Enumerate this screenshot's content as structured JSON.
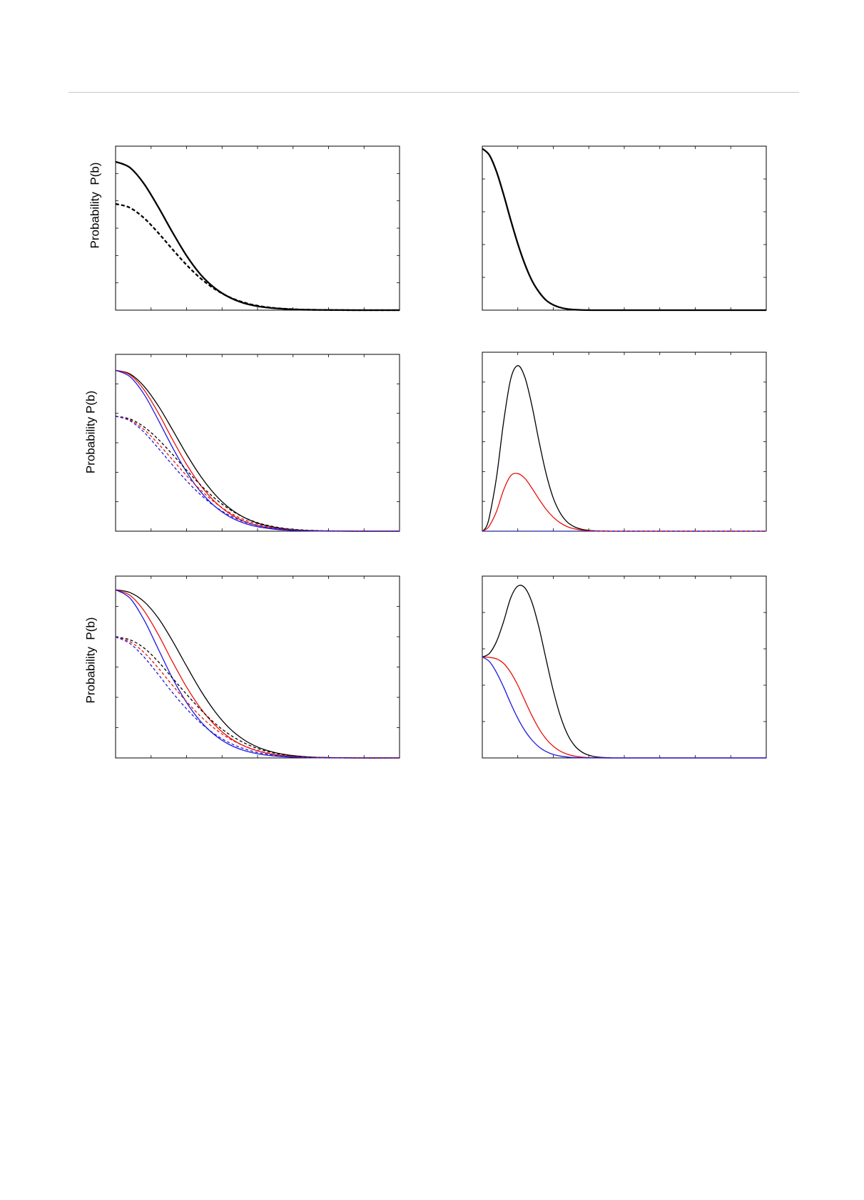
{
  "figure": {
    "colors": {
      "black": "#000000",
      "red": "#e8100a",
      "blue": "#1a1ae0",
      "rule": "#c8c8c8"
    },
    "panels": [
      {
        "id": "top-left",
        "ylabel": "Probability  P(b)"
      },
      {
        "id": "top-right",
        "ylabel": ""
      },
      {
        "id": "middle-left",
        "ylabel": "Probability P(b)"
      },
      {
        "id": "middle-right",
        "ylabel": ""
      },
      {
        "id": "bottom-left",
        "ylabel": "Probability  P(b)"
      },
      {
        "id": "bottom-right",
        "ylabel": ""
      }
    ]
  },
  "chart_data": [
    {
      "type": "line",
      "panel": "top-left",
      "title": "",
      "xlabel": "",
      "ylabel": "Probability  P(b)",
      "xlim": [
        0,
        8
      ],
      "ylim": [
        0,
        1
      ],
      "xticks": 8,
      "yticks": 6,
      "grid": false,
      "series": [
        {
          "color": "black",
          "dash": "solid",
          "width": "bold",
          "x": [
            0,
            0.4,
            0.8,
            1.2,
            1.6,
            2.0,
            2.4,
            2.8,
            3.2,
            3.6,
            4.0,
            4.4,
            4.8,
            5.2,
            5.6,
            6.0,
            6.8,
            8.0
          ],
          "y": [
            0.905,
            0.87,
            0.771,
            0.63,
            0.476,
            0.332,
            0.216,
            0.134,
            0.079,
            0.044,
            0.024,
            0.013,
            0.007,
            0.003,
            0.002,
            0.001,
            0.0,
            0.0
          ]
        },
        {
          "color": "black",
          "dash": "dashed",
          "width": "bold",
          "x": [
            0,
            0.4,
            0.8,
            1.2,
            1.6,
            2.0,
            2.4,
            2.8,
            3.2,
            3.6,
            4.0,
            4.4,
            4.8,
            5.2,
            5.6,
            6.0,
            6.8,
            8.0
          ],
          "y": [
            0.648,
            0.625,
            0.562,
            0.472,
            0.372,
            0.276,
            0.193,
            0.128,
            0.08,
            0.048,
            0.027,
            0.015,
            0.008,
            0.004,
            0.002,
            0.001,
            0.0,
            0.0
          ]
        }
      ]
    },
    {
      "type": "line",
      "panel": "top-right",
      "title": "",
      "xlabel": "",
      "ylabel": "",
      "xlim": [
        0,
        8
      ],
      "ylim": [
        0,
        1
      ],
      "xticks": 8,
      "yticks": 5,
      "grid": false,
      "series": [
        {
          "color": "black",
          "dash": "solid",
          "width": "bold",
          "x": [
            0,
            0.2,
            0.4,
            0.6,
            0.8,
            1.0,
            1.2,
            1.4,
            1.6,
            1.8,
            2.0,
            2.2,
            2.4,
            2.6,
            2.8,
            3.2,
            4.0,
            8.0
          ],
          "y": [
            0.985,
            0.945,
            0.845,
            0.705,
            0.55,
            0.405,
            0.28,
            0.18,
            0.11,
            0.06,
            0.032,
            0.016,
            0.007,
            0.003,
            0.001,
            0.0,
            0.0,
            0.0
          ]
        }
      ]
    },
    {
      "type": "line",
      "panel": "middle-left",
      "title": "",
      "xlabel": "",
      "ylabel": "Probability P(b)",
      "xlim": [
        0,
        8
      ],
      "ylim": [
        0,
        1
      ],
      "xticks": 8,
      "yticks": 6,
      "grid": false,
      "series": [
        {
          "color": "black",
          "dash": "solid",
          "width": "thin",
          "x": [
            0,
            0.4,
            0.8,
            1.2,
            1.6,
            2.0,
            2.4,
            2.8,
            3.2,
            3.6,
            4.0,
            4.4,
            4.8,
            5.2,
            5.6,
            6.0,
            6.8,
            8.0
          ],
          "y": [
            0.91,
            0.89,
            0.82,
            0.71,
            0.575,
            0.435,
            0.31,
            0.208,
            0.132,
            0.08,
            0.046,
            0.025,
            0.013,
            0.006,
            0.003,
            0.001,
            0.0,
            0.0
          ]
        },
        {
          "color": "red",
          "dash": "solid",
          "width": "thin",
          "x": [
            0,
            0.4,
            0.8,
            1.2,
            1.6,
            2.0,
            2.4,
            2.8,
            3.2,
            3.6,
            4.0,
            4.4,
            4.8,
            5.2,
            5.6,
            6.0,
            6.8,
            8.0
          ],
          "y": [
            0.91,
            0.885,
            0.8,
            0.67,
            0.52,
            0.378,
            0.258,
            0.166,
            0.101,
            0.058,
            0.032,
            0.017,
            0.008,
            0.004,
            0.002,
            0.001,
            0.0,
            0.0
          ]
        },
        {
          "color": "blue",
          "dash": "solid",
          "width": "thin",
          "x": [
            0,
            0.4,
            0.8,
            1.2,
            1.6,
            2.0,
            2.4,
            2.8,
            3.2,
            3.6,
            4.0,
            4.4,
            4.8,
            5.2,
            5.6,
            6.0,
            6.8,
            8.0
          ],
          "y": [
            0.91,
            0.875,
            0.775,
            0.63,
            0.475,
            0.335,
            0.222,
            0.14,
            0.083,
            0.047,
            0.025,
            0.013,
            0.006,
            0.003,
            0.001,
            0.0,
            0.0,
            0.0
          ]
        },
        {
          "color": "black",
          "dash": "dashed",
          "width": "thin",
          "x": [
            0,
            0.4,
            0.8,
            1.2,
            1.6,
            2.0,
            2.4,
            2.8,
            3.2,
            3.6,
            4.0,
            4.4,
            4.8,
            5.2,
            5.6,
            6.0,
            6.8,
            8.0
          ],
          "y": [
            0.65,
            0.635,
            0.59,
            0.52,
            0.435,
            0.345,
            0.26,
            0.185,
            0.125,
            0.08,
            0.048,
            0.028,
            0.015,
            0.008,
            0.004,
            0.002,
            0.0,
            0.0
          ]
        },
        {
          "color": "red",
          "dash": "dashed",
          "width": "thin",
          "x": [
            0,
            0.4,
            0.8,
            1.2,
            1.6,
            2.0,
            2.4,
            2.8,
            3.2,
            3.6,
            4.0,
            4.4,
            4.8,
            5.2,
            5.6,
            6.0,
            6.8,
            8.0
          ],
          "y": [
            0.65,
            0.63,
            0.575,
            0.495,
            0.405,
            0.314,
            0.232,
            0.162,
            0.107,
            0.067,
            0.04,
            0.022,
            0.012,
            0.006,
            0.003,
            0.001,
            0.0,
            0.0
          ]
        },
        {
          "color": "blue",
          "dash": "dashed",
          "width": "thin",
          "x": [
            0,
            0.4,
            0.8,
            1.2,
            1.6,
            2.0,
            2.4,
            2.8,
            3.2,
            3.6,
            4.0,
            4.4,
            4.8,
            5.2,
            5.6,
            6.0,
            6.8,
            8.0
          ],
          "y": [
            0.65,
            0.625,
            0.56,
            0.47,
            0.375,
            0.285,
            0.205,
            0.14,
            0.09,
            0.055,
            0.032,
            0.018,
            0.009,
            0.005,
            0.002,
            0.001,
            0.0,
            0.0
          ]
        }
      ]
    },
    {
      "type": "line",
      "panel": "middle-right",
      "title": "",
      "xlabel": "",
      "ylabel": "",
      "xlim": [
        0,
        8
      ],
      "ylim": [
        0,
        1
      ],
      "xticks": 8,
      "yticks": 6,
      "grid": false,
      "series": [
        {
          "color": "black",
          "dash": "solid",
          "width": "thin",
          "x": [
            0,
            0.1,
            0.2,
            0.4,
            0.6,
            0.8,
            1.0,
            1.2,
            1.4,
            1.6,
            1.8,
            2.0,
            2.2,
            2.4,
            2.6,
            2.8,
            3.0,
            3.2,
            3.6,
            4.0,
            8.0
          ],
          "y": [
            0.0,
            0.02,
            0.08,
            0.3,
            0.61,
            0.85,
            0.925,
            0.86,
            0.7,
            0.5,
            0.32,
            0.185,
            0.1,
            0.05,
            0.024,
            0.011,
            0.005,
            0.002,
            0.0,
            0.0,
            0.0
          ]
        },
        {
          "color": "red",
          "dash": "solid",
          "width": "thin",
          "x": [
            0,
            0.1,
            0.2,
            0.4,
            0.6,
            0.8,
            1.0,
            1.2,
            1.4,
            1.6,
            1.8,
            2.0,
            2.2,
            2.4,
            2.6,
            2.8,
            3.0,
            3.2,
            3.6,
            4.0,
            8.0
          ],
          "y": [
            0.0,
            0.01,
            0.03,
            0.11,
            0.23,
            0.31,
            0.322,
            0.295,
            0.24,
            0.178,
            0.122,
            0.078,
            0.046,
            0.025,
            0.013,
            0.006,
            0.003,
            0.001,
            0.0,
            0.0,
            0.0
          ]
        },
        {
          "color": "blue",
          "dash": "dashed",
          "width": "thin",
          "x": [
            0,
            8.0
          ],
          "y": [
            0.0,
            0.0
          ]
        }
      ]
    },
    {
      "type": "line",
      "panel": "bottom-left",
      "title": "",
      "xlabel": "",
      "ylabel": "Probability  P(b)",
      "xlim": [
        0,
        8
      ],
      "ylim": [
        0,
        1
      ],
      "xticks": 8,
      "yticks": 6,
      "grid": false,
      "series": [
        {
          "color": "black",
          "dash": "solid",
          "width": "thin",
          "x": [
            0,
            0.4,
            0.8,
            1.2,
            1.6,
            2.0,
            2.4,
            2.8,
            3.2,
            3.6,
            4.0,
            4.4,
            4.8,
            5.2,
            5.6,
            6.0,
            6.8,
            8.0
          ],
          "y": [
            0.925,
            0.91,
            0.86,
            0.77,
            0.645,
            0.505,
            0.37,
            0.255,
            0.165,
            0.102,
            0.06,
            0.034,
            0.018,
            0.009,
            0.004,
            0.002,
            0.0,
            0.0
          ]
        },
        {
          "color": "red",
          "dash": "solid",
          "width": "thin",
          "x": [
            0,
            0.4,
            0.8,
            1.2,
            1.6,
            2.0,
            2.4,
            2.8,
            3.2,
            3.6,
            4.0,
            4.4,
            4.8,
            5.2,
            5.6,
            6.0,
            6.8,
            8.0
          ],
          "y": [
            0.925,
            0.895,
            0.81,
            0.68,
            0.53,
            0.39,
            0.272,
            0.18,
            0.113,
            0.068,
            0.039,
            0.021,
            0.011,
            0.005,
            0.002,
            0.001,
            0.0,
            0.0
          ]
        },
        {
          "color": "blue",
          "dash": "solid",
          "width": "thin",
          "x": [
            0,
            0.4,
            0.8,
            1.2,
            1.6,
            2.0,
            2.4,
            2.8,
            3.2,
            3.6,
            4.0,
            4.4,
            4.8,
            5.2,
            5.6,
            6.0,
            6.8,
            8.0
          ],
          "y": [
            0.925,
            0.88,
            0.76,
            0.6,
            0.44,
            0.305,
            0.2,
            0.125,
            0.074,
            0.042,
            0.023,
            0.012,
            0.006,
            0.003,
            0.001,
            0.0,
            0.0,
            0.0
          ]
        },
        {
          "color": "black",
          "dash": "dashed",
          "width": "thin",
          "x": [
            0,
            0.4,
            0.8,
            1.2,
            1.6,
            2.0,
            2.4,
            2.8,
            3.2,
            3.6,
            4.0,
            4.4,
            4.8,
            5.2,
            5.6,
            6.0,
            6.8,
            8.0
          ],
          "y": [
            0.665,
            0.65,
            0.605,
            0.53,
            0.44,
            0.35,
            0.265,
            0.19,
            0.13,
            0.085,
            0.052,
            0.03,
            0.016,
            0.008,
            0.004,
            0.002,
            0.0,
            0.0
          ]
        },
        {
          "color": "red",
          "dash": "dashed",
          "width": "thin",
          "x": [
            0,
            0.4,
            0.8,
            1.2,
            1.6,
            2.0,
            2.4,
            2.8,
            3.2,
            3.6,
            4.0,
            4.4,
            4.8,
            5.2,
            5.6,
            6.0,
            6.8,
            8.0
          ],
          "y": [
            0.665,
            0.64,
            0.58,
            0.495,
            0.4,
            0.31,
            0.228,
            0.16,
            0.107,
            0.068,
            0.041,
            0.023,
            0.012,
            0.006,
            0.003,
            0.001,
            0.0,
            0.0
          ]
        },
        {
          "color": "blue",
          "dash": "dashed",
          "width": "thin",
          "x": [
            0,
            0.4,
            0.8,
            1.2,
            1.6,
            2.0,
            2.4,
            2.8,
            3.2,
            3.6,
            4.0,
            4.4,
            4.8,
            5.2,
            5.6,
            6.0,
            6.8,
            8.0
          ],
          "y": [
            0.665,
            0.63,
            0.555,
            0.46,
            0.36,
            0.27,
            0.192,
            0.13,
            0.084,
            0.052,
            0.03,
            0.017,
            0.009,
            0.004,
            0.002,
            0.001,
            0.0,
            0.0
          ]
        }
      ]
    },
    {
      "type": "line",
      "panel": "bottom-right",
      "title": "",
      "xlabel": "",
      "ylabel": "",
      "xlim": [
        0,
        8
      ],
      "ylim": [
        0,
        1
      ],
      "xticks": 8,
      "yticks": 5,
      "grid": false,
      "series": [
        {
          "color": "black",
          "dash": "solid",
          "width": "thin",
          "x": [
            0,
            0.2,
            0.4,
            0.6,
            0.8,
            1.0,
            1.2,
            1.4,
            1.6,
            1.8,
            2.0,
            2.2,
            2.4,
            2.6,
            2.8,
            3.0,
            3.2,
            3.6,
            4.0,
            8.0
          ],
          "y": [
            0.555,
            0.575,
            0.64,
            0.75,
            0.88,
            0.945,
            0.935,
            0.855,
            0.715,
            0.54,
            0.37,
            0.23,
            0.13,
            0.068,
            0.033,
            0.015,
            0.006,
            0.001,
            0.0,
            0.0
          ]
        },
        {
          "color": "red",
          "dash": "solid",
          "width": "thin",
          "x": [
            0,
            0.2,
            0.4,
            0.6,
            0.8,
            1.0,
            1.2,
            1.4,
            1.6,
            1.8,
            2.0,
            2.2,
            2.4,
            2.6,
            2.8,
            3.0,
            3.2,
            3.6,
            4.0,
            8.0
          ],
          "y": [
            0.555,
            0.553,
            0.545,
            0.52,
            0.47,
            0.4,
            0.315,
            0.232,
            0.16,
            0.104,
            0.064,
            0.037,
            0.02,
            0.01,
            0.005,
            0.002,
            0.001,
            0.0,
            0.0,
            0.0
          ]
        },
        {
          "color": "blue",
          "dash": "solid",
          "width": "thin",
          "x": [
            0,
            0.2,
            0.4,
            0.6,
            0.8,
            1.0,
            1.2,
            1.4,
            1.6,
            1.8,
            2.0,
            2.2,
            2.4,
            2.6,
            2.8,
            3.0,
            3.2,
            3.6,
            4.0,
            8.0
          ],
          "y": [
            0.555,
            0.53,
            0.47,
            0.39,
            0.3,
            0.218,
            0.15,
            0.098,
            0.06,
            0.035,
            0.019,
            0.01,
            0.005,
            0.002,
            0.001,
            0.0,
            0.0,
            0.0,
            0.0,
            0.0
          ]
        }
      ]
    }
  ]
}
